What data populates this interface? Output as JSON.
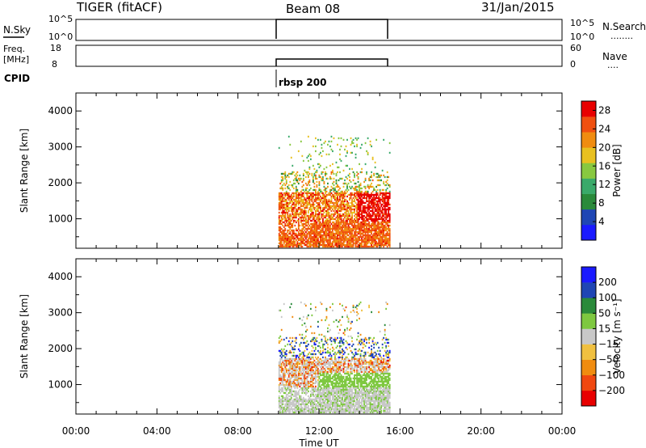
{
  "header": {
    "radar_title": "TIGER (fitACF)",
    "beam": "Beam 08",
    "date": "31/Jan/2015"
  },
  "panels": {
    "nsky": {
      "left_label": "N.Sky",
      "left_ticks": [
        "10^5",
        "10^0"
      ],
      "right_ticks": [
        "10^5",
        "10^0"
      ],
      "right_label": "N.Search",
      "right_dots": "........"
    },
    "freq": {
      "left_label_1": "Freq.",
      "left_label_2": "[MHz]",
      "left_ticks": [
        "18",
        "8"
      ],
      "right_ticks": [
        "60",
        "0"
      ],
      "right_label": "Nave",
      "right_dots": "...."
    },
    "cpid": {
      "label": "CPID",
      "mode_text": "rbsp 200"
    }
  },
  "colors": {
    "power_scale": [
      "#1a1aff",
      "#1f46b4",
      "#2a8a3a",
      "#3aaa6a",
      "#88c840",
      "#e8c020",
      "#f08c10",
      "#f05010",
      "#e80000"
    ],
    "velocity_scale": [
      "#e80000",
      "#f04810",
      "#f08c10",
      "#f0c040",
      "#c8c8c8",
      "#7ec840",
      "#2a8a3a",
      "#1f46b4",
      "#1a1aff"
    ]
  },
  "chart_data": [
    {
      "type": "heatmap",
      "name": "power",
      "xlabel": "",
      "ylabel": "Slant Range [km]",
      "x_ticks": [
        "00:00",
        "04:00",
        "08:00",
        "12:00",
        "16:00",
        "20:00",
        "00:00"
      ],
      "y_ticks": [
        "1000",
        "2000",
        "3000",
        "4000"
      ],
      "xlim_hours": [
        0,
        24
      ],
      "ylim_km": [
        180,
        4500
      ],
      "colorbar": {
        "label": "Power [dB]",
        "ticks": [
          "4",
          "8",
          "12",
          "16",
          "20",
          "24",
          "28"
        ],
        "range": [
          0,
          30
        ]
      },
      "data_window_hours": [
        10.0,
        15.5
      ],
      "features": [
        {
          "desc": "near range band",
          "range_km": [
            200,
            900
          ],
          "dominant_value": 28
        },
        {
          "desc": "mid band",
          "range_km": [
            900,
            1700
          ],
          "dominant_value": 24
        },
        {
          "desc": "far sparse echoes",
          "range_km": [
            1700,
            3200
          ],
          "dominant_value": 16
        }
      ]
    },
    {
      "type": "heatmap",
      "name": "velocity",
      "xlabel": "Time UT",
      "ylabel": "Slant Range [km]",
      "x_ticks": [
        "00:00",
        "04:00",
        "08:00",
        "12:00",
        "16:00",
        "20:00",
        "00:00"
      ],
      "y_ticks": [
        "1000",
        "2000",
        "3000",
        "4000"
      ],
      "xlim_hours": [
        0,
        24
      ],
      "ylim_km": [
        180,
        4500
      ],
      "colorbar": {
        "label": "Velocity [m s⁻¹]",
        "ticks": [
          "200",
          "100",
          "50",
          "15",
          "−15",
          "−50",
          "−100",
          "−200"
        ],
        "range": [
          -250,
          250
        ]
      },
      "data_window_hours": [
        10.0,
        15.5
      ],
      "features": [
        {
          "desc": "near range ground scatter",
          "range_km": [
            200,
            1100
          ],
          "dominant_value": 0
        },
        {
          "desc": "mid band positive",
          "range_km": [
            700,
            1300
          ],
          "dominant_value": 50
        },
        {
          "desc": "far mixed echoes",
          "range_km": [
            1300,
            3100
          ],
          "dominant_value": -80
        }
      ]
    }
  ]
}
